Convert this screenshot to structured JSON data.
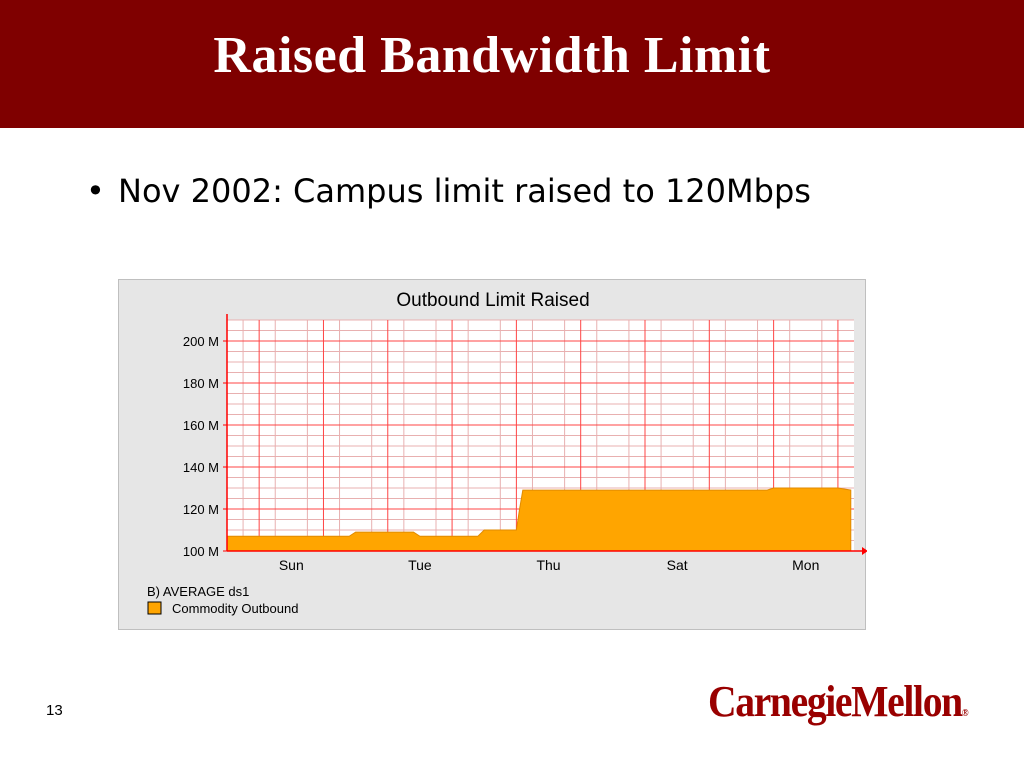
{
  "slide": {
    "title": "Raised Bandwidth Limit",
    "bullet": "Nov 2002: Campus limit raised to 120Mbps",
    "page_number": "13",
    "logo_text": "CarnegieMellon",
    "logo_mark": "®"
  },
  "colors": {
    "title_bar": "#7f0000",
    "area_fill": "#ffa500",
    "grid_major": "#ff4444",
    "grid_minor": "#e8b0b0",
    "logo": "#990000"
  },
  "chart_data": {
    "type": "area",
    "title": "Outbound Limit Raised",
    "xlabel": "",
    "ylabel": "",
    "ylim": [
      100,
      210
    ],
    "y_ticks": [
      "100 M",
      "120 M",
      "140 M",
      "160 M",
      "180 M",
      "200 M"
    ],
    "x_ticks": [
      "Sun",
      "Tue",
      "Thu",
      "Sat",
      "Mon"
    ],
    "legend_header": "B)  AVERAGE ds1",
    "grid": true,
    "series": [
      {
        "name": "Commodity Outbound",
        "x": [
          0,
          0.5,
          1.0,
          1.5,
          1.9,
          2.0,
          2.5,
          2.9,
          3.0,
          3.5,
          3.9,
          4.0,
          4.5,
          4.55,
          4.6,
          5.0,
          5.5,
          6.0,
          6.5,
          6.9,
          7.0,
          7.5,
          8.0,
          8.4,
          8.5,
          9.0,
          9.5,
          9.7
        ],
        "values": [
          107,
          107,
          107,
          107,
          107,
          109,
          109,
          109,
          107,
          107,
          107,
          110,
          110,
          120,
          129,
          129,
          129,
          129,
          129,
          129,
          129,
          129,
          129,
          129,
          130,
          130,
          130,
          129
        ]
      }
    ]
  }
}
